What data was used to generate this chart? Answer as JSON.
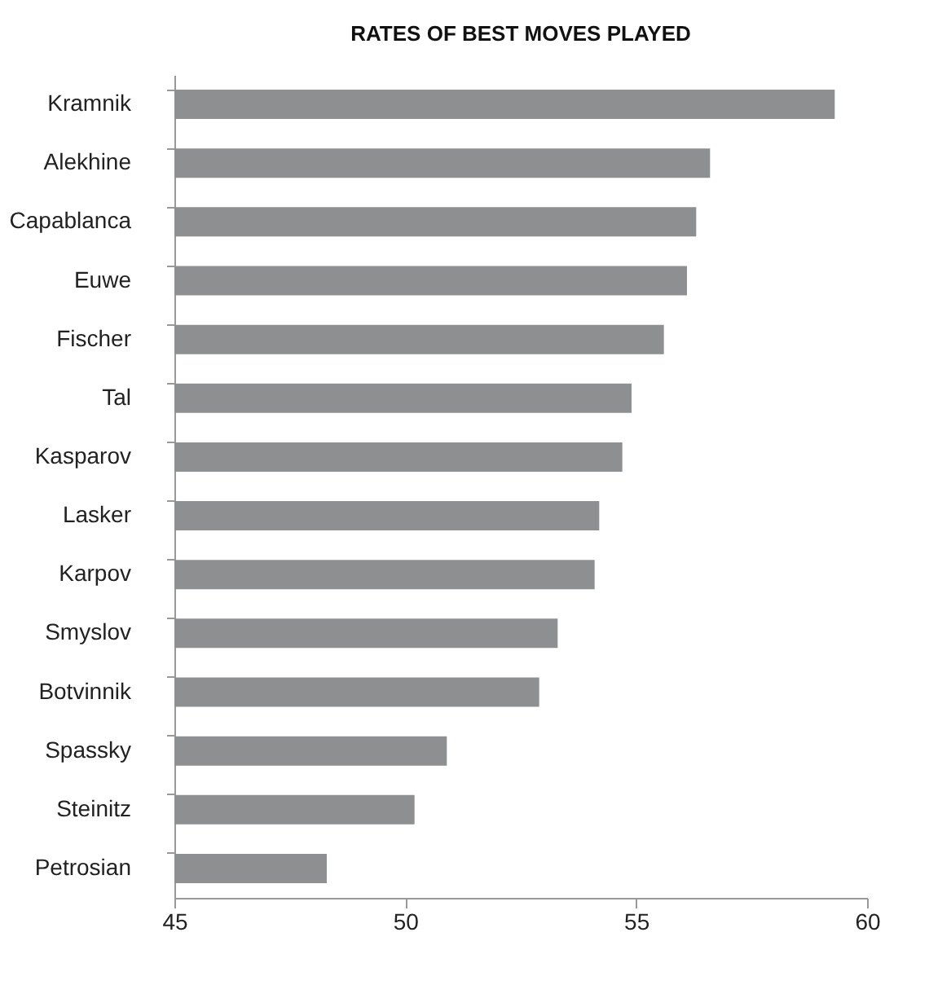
{
  "chart_data": {
    "type": "bar",
    "orientation": "horizontal",
    "title": "RATES OF BEST MOVES PLAYED",
    "categories": [
      "Kramnik",
      "Alekhine",
      "Capablanca",
      "Euwe",
      "Fischer",
      "Tal",
      "Kasparov",
      "Lasker",
      "Karpov",
      "Smyslov",
      "Botvinnik",
      "Spassky",
      "Steinitz",
      "Petrosian"
    ],
    "values": [
      59.3,
      56.6,
      56.3,
      56.1,
      55.6,
      54.9,
      54.7,
      54.2,
      54.1,
      53.3,
      52.9,
      50.9,
      50.2,
      48.3
    ],
    "color": "#8e8f91",
    "xlim": [
      45,
      60
    ],
    "xticks": [
      45,
      50,
      55,
      60
    ],
    "grid": false
  }
}
